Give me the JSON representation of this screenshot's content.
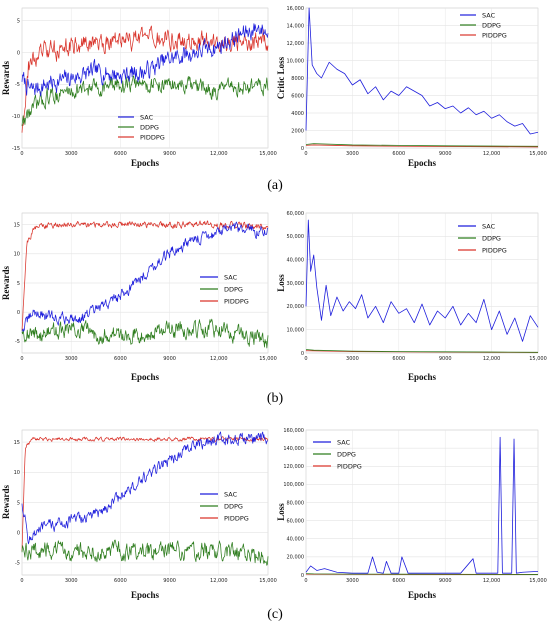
{
  "colors": {
    "SAC": "#1f1fdc",
    "DDPG": "#2e7d1e",
    "PIDDPG": "#d9342b"
  },
  "captions": [
    "(a)",
    "(b)",
    "(c)"
  ],
  "chart_data": [
    {
      "id": "a-left",
      "type": "line",
      "xlabel": "Epochs",
      "ylabel": "Rewards",
      "xlim": [
        0,
        15000
      ],
      "ylim": [
        -15,
        7
      ],
      "xticks": [
        "0",
        "3000",
        "6000",
        "9000",
        "12,000",
        "15,000"
      ],
      "yticks": [
        "-15",
        "-10",
        "-5",
        "0",
        "5"
      ],
      "legend_position": "bottom-center",
      "series": [
        {
          "name": "SAC",
          "shape": "noisy",
          "noise": 1.3,
          "x": [
            0,
            500,
            1500,
            3000,
            4500,
            6000,
            7500,
            9000,
            10500,
            12000,
            13500,
            14500,
            15000
          ],
          "values": [
            -4,
            -6,
            -5,
            -4,
            -3,
            -3.5,
            -3,
            -1,
            0,
            1,
            3,
            4,
            3
          ]
        },
        {
          "name": "DDPG",
          "shape": "noisy",
          "noise": 1.2,
          "x": [
            0,
            600,
            1500,
            3000,
            6000,
            9000,
            12000,
            15000
          ],
          "values": [
            -11,
            -9,
            -7,
            -6,
            -5,
            -5,
            -6,
            -5
          ]
        },
        {
          "name": "PIDDPG",
          "shape": "noisy",
          "noise": 1.4,
          "x": [
            0,
            400,
            1200,
            3000,
            6000,
            9000,
            12000,
            15000
          ],
          "values": [
            -12,
            -2,
            0,
            1,
            2,
            2,
            1.5,
            2
          ]
        }
      ]
    },
    {
      "id": "a-right",
      "type": "line",
      "xlabel": "Epochs",
      "ylabel": "Critic Loss",
      "xlim": [
        0,
        15000
      ],
      "ylim": [
        0,
        16000
      ],
      "xticks": [
        "0",
        "3000",
        "6000",
        "9000",
        "12,000",
        "15,000"
      ],
      "yticks": [
        "0",
        "2000",
        "4000",
        "6000",
        "8000",
        "10,000",
        "12,000",
        "14,000",
        "16,000"
      ],
      "legend_position": "top-right",
      "series": [
        {
          "name": "SAC",
          "shape": "polyline",
          "x": [
            0,
            200,
            400,
            700,
            1000,
            1500,
            2000,
            2500,
            3000,
            3500,
            4000,
            4500,
            5000,
            5500,
            6000,
            6500,
            7000,
            7500,
            8000,
            8500,
            9000,
            9500,
            10000,
            10500,
            11000,
            11500,
            12000,
            12500,
            13000,
            13500,
            14000,
            14500,
            15000
          ],
          "values": [
            2000,
            16000,
            9500,
            8500,
            8000,
            9800,
            9000,
            8500,
            7200,
            7800,
            6200,
            7000,
            5500,
            6500,
            6000,
            7000,
            6500,
            6000,
            4800,
            5200,
            4500,
            4800,
            4000,
            4600,
            3800,
            4200,
            3400,
            3800,
            3000,
            2500,
            2800,
            1600,
            1800
          ]
        },
        {
          "name": "DDPG",
          "shape": "polyline",
          "x": [
            0,
            500,
            3000,
            6000,
            9000,
            12000,
            15000
          ],
          "values": [
            400,
            500,
            350,
            300,
            250,
            220,
            200
          ]
        },
        {
          "name": "PIDDPG",
          "shape": "polyline",
          "x": [
            0,
            500,
            3000,
            6000,
            9000,
            12000,
            15000
          ],
          "values": [
            300,
            350,
            250,
            200,
            180,
            150,
            120
          ]
        }
      ]
    },
    {
      "id": "b-left",
      "type": "line",
      "xlabel": "Epochs",
      "ylabel": "Rewards",
      "xlim": [
        0,
        15000
      ],
      "ylim": [
        -7,
        17
      ],
      "xticks": [
        "0",
        "3000",
        "6000",
        "9000",
        "12,000",
        "15,000"
      ],
      "yticks": [
        "-5",
        "0",
        "5",
        "10",
        "15"
      ],
      "legend_position": "center-right",
      "series": [
        {
          "name": "SAC",
          "shape": "noisy",
          "noise": 0.9,
          "x": [
            0,
            700,
            2000,
            3500,
            5000,
            6500,
            8000,
            9500,
            11000,
            12500,
            15000
          ],
          "values": [
            -3,
            0,
            -1,
            -1,
            1,
            4,
            8,
            11,
            13,
            14,
            14
          ]
        },
        {
          "name": "DDPG",
          "shape": "noisy",
          "noise": 1.3,
          "x": [
            0,
            500,
            3000,
            6000,
            9000,
            12000,
            15000
          ],
          "values": [
            -3,
            -4,
            -3,
            -4,
            -3,
            -3,
            -5
          ]
        },
        {
          "name": "PIDDPG",
          "shape": "noisy",
          "noise": 0.5,
          "x": [
            0,
            300,
            800,
            2000,
            6000,
            9000,
            12000,
            15000
          ],
          "values": [
            -3,
            12,
            14.5,
            15,
            15,
            15,
            15,
            14.5
          ]
        }
      ]
    },
    {
      "id": "b-right",
      "type": "line",
      "xlabel": "Epochs",
      "ylabel": "Loss",
      "xlim": [
        0,
        15000
      ],
      "ylim": [
        0,
        60000
      ],
      "xticks": [
        "0",
        "3000",
        "6000",
        "9000",
        "12,000",
        "15,000"
      ],
      "yticks": [
        "0",
        "10,000",
        "20,000",
        "30,000",
        "40,000",
        "50,000",
        "60,000"
      ],
      "legend_position": "top-right",
      "series": [
        {
          "name": "SAC",
          "shape": "polyline",
          "x": [
            0,
            150,
            300,
            500,
            700,
            1000,
            1300,
            1600,
            2000,
            2400,
            2800,
            3200,
            3600,
            4000,
            4500,
            5000,
            5500,
            6000,
            6500,
            7000,
            7500,
            8000,
            8500,
            9000,
            9500,
            10000,
            10500,
            11000,
            11500,
            12000,
            12500,
            13000,
            13500,
            14000,
            14500,
            15000
          ],
          "values": [
            20000,
            57000,
            35000,
            42000,
            28000,
            14000,
            29000,
            16000,
            24000,
            18000,
            22000,
            19000,
            25000,
            15000,
            20000,
            13000,
            22000,
            17000,
            19000,
            13000,
            21000,
            12000,
            18000,
            15000,
            20000,
            12000,
            17000,
            13000,
            23000,
            10000,
            18000,
            8000,
            15000,
            5000,
            16000,
            11000
          ]
        },
        {
          "name": "DDPG",
          "shape": "polyline",
          "x": [
            0,
            500,
            3000,
            6000,
            9000,
            12000,
            15000
          ],
          "values": [
            1500,
            1200,
            800,
            600,
            500,
            400,
            300
          ]
        },
        {
          "name": "PIDDPG",
          "shape": "polyline",
          "x": [
            0,
            500,
            3000,
            6000,
            9000,
            12000,
            15000
          ],
          "values": [
            1000,
            900,
            600,
            500,
            400,
            300,
            250
          ]
        }
      ]
    },
    {
      "id": "c-left",
      "type": "line",
      "xlabel": "Epochs",
      "ylabel": "Rewards",
      "xlim": [
        0,
        15000
      ],
      "ylim": [
        -7,
        17
      ],
      "xticks": [
        "0",
        "3000",
        "6000",
        "9000",
        "12,000",
        "15,000"
      ],
      "yticks": [
        "-5",
        "0",
        "5",
        "10",
        "15"
      ],
      "legend_position": "center-right",
      "series": [
        {
          "name": "SAC",
          "shape": "noisy",
          "noise": 0.9,
          "x": [
            0,
            400,
            1500,
            3000,
            4500,
            6000,
            7500,
            9000,
            10500,
            12000,
            15000
          ],
          "values": [
            5,
            -1,
            1,
            2,
            3,
            6,
            9,
            12,
            14.5,
            15.5,
            15.5
          ]
        },
        {
          "name": "DDPG",
          "shape": "noisy",
          "noise": 1.3,
          "x": [
            0,
            500,
            3000,
            6000,
            9000,
            12000,
            15000
          ],
          "values": [
            -3,
            -3,
            -3,
            -3,
            -3,
            -3,
            -4
          ]
        },
        {
          "name": "PIDDPG",
          "shape": "noisy",
          "noise": 0.3,
          "x": [
            0,
            200,
            600,
            2000,
            6000,
            9000,
            12000,
            15000
          ],
          "values": [
            -3,
            14,
            15.5,
            15.5,
            15.5,
            15.5,
            15.5,
            15.5
          ]
        }
      ]
    },
    {
      "id": "c-right",
      "type": "line",
      "xlabel": "Epochs",
      "ylabel": "Loss",
      "xlim": [
        0,
        15000
      ],
      "ylim": [
        0,
        160000
      ],
      "xticks": [
        "0",
        "3000",
        "6000",
        "9000",
        "12,000",
        "15,000"
      ],
      "yticks": [
        "0",
        "20,000",
        "40,000",
        "60,000",
        "80,000",
        "100,000",
        "120,000",
        "140,000",
        "160,000"
      ],
      "legend_position": "top-left",
      "series": [
        {
          "name": "SAC",
          "shape": "polyline",
          "x": [
            0,
            300,
            700,
            1200,
            2000,
            3000,
            4000,
            4300,
            4600,
            5000,
            5200,
            5500,
            6000,
            6200,
            6600,
            7000,
            8000,
            9000,
            10000,
            10800,
            11000,
            11200,
            12000,
            12400,
            12550,
            12700,
            13000,
            13300,
            13450,
            13600,
            14000,
            15000
          ],
          "values": [
            3000,
            10000,
            5000,
            7000,
            3000,
            2000,
            2000,
            20000,
            3000,
            2000,
            15000,
            2000,
            2000,
            20000,
            2000,
            2000,
            2000,
            2000,
            2000,
            18000,
            2000,
            2000,
            2000,
            2000,
            152000,
            2000,
            2000,
            2000,
            150000,
            2000,
            3000,
            4000
          ]
        },
        {
          "name": "DDPG",
          "shape": "polyline",
          "x": [
            0,
            500,
            3000,
            6000,
            9000,
            12000,
            15000
          ],
          "values": [
            1500,
            1200,
            1000,
            900,
            800,
            700,
            600
          ]
        },
        {
          "name": "PIDDPG",
          "shape": "polyline",
          "x": [
            0,
            500,
            3000,
            6000,
            9000,
            12000,
            15000
          ],
          "values": [
            1000,
            900,
            700,
            600,
            500,
            450,
            400
          ]
        }
      ]
    }
  ]
}
